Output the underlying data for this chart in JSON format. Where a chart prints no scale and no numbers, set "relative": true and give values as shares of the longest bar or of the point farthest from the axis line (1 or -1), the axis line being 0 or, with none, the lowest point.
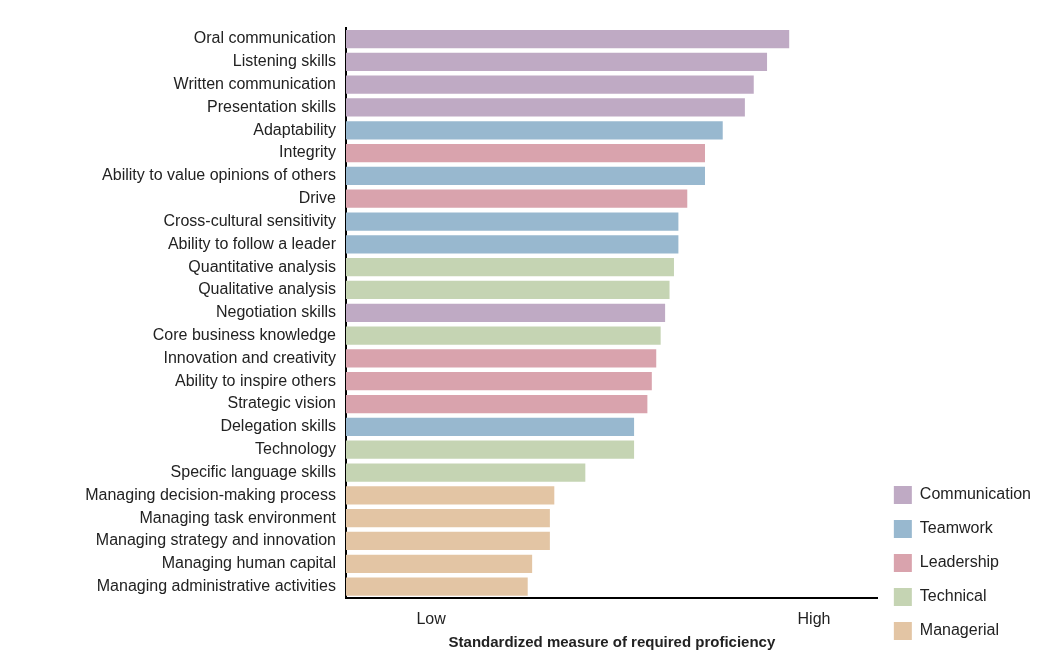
{
  "chart_data": {
    "type": "bar",
    "orientation": "horizontal",
    "stacked": true,
    "relative": true,
    "xlabel": "Standardized measure of required proficiency",
    "categories": [
      "Oral communication",
      "Listening skills",
      "Written communication",
      "Presentation skills",
      "Adaptability",
      "Integrity",
      "Ability to value opinions of others",
      "Drive",
      "Cross-cultural sensitivity",
      "Ability to follow a leader",
      "Quantitative analysis",
      "Qualitative analysis",
      "Negotiation skills",
      "Core business knowledge",
      "Innovation and creativity",
      "Ability to inspire others",
      "Strategic vision",
      "Delegation skills",
      "Technology",
      "Specific language skills",
      "Managing decision-making process",
      "Managing task environment",
      "Managing strategy and innovation",
      "Managing human capital",
      "Managing administrative activities"
    ],
    "annotations": [
      "Low",
      "High"
    ],
    "series": [
      {
        "name": "Communication",
        "color": "#bfaac4",
        "values": [
          1.0,
          0.95,
          0.92,
          0.9,
          null,
          null,
          null,
          null,
          null,
          null,
          null,
          null,
          0.72,
          null,
          null,
          null,
          null,
          null,
          null,
          null,
          null,
          null,
          null,
          null,
          null
        ]
      },
      {
        "name": "Teamwork",
        "color": "#98b8cf",
        "values": [
          null,
          null,
          null,
          null,
          0.85,
          null,
          0.81,
          null,
          0.75,
          0.75,
          null,
          null,
          null,
          null,
          null,
          null,
          null,
          0.65,
          null,
          null,
          null,
          null,
          null,
          null,
          null
        ]
      },
      {
        "name": "Leadership",
        "color": "#d9a3ad",
        "values": [
          null,
          null,
          null,
          null,
          null,
          0.81,
          null,
          0.77,
          null,
          null,
          null,
          null,
          null,
          null,
          0.7,
          0.69,
          0.68,
          null,
          null,
          null,
          null,
          null,
          null,
          null,
          null
        ]
      },
      {
        "name": "Technical",
        "color": "#c5d4b3",
        "values": [
          null,
          null,
          null,
          null,
          null,
          null,
          null,
          null,
          null,
          null,
          0.74,
          0.73,
          null,
          0.71,
          null,
          null,
          null,
          null,
          0.65,
          0.54,
          null,
          null,
          null,
          null,
          null
        ]
      },
      {
        "name": "Managerial",
        "color": "#e3c5a4",
        "values": [
          null,
          null,
          null,
          null,
          null,
          null,
          null,
          null,
          null,
          null,
          null,
          null,
          null,
          null,
          null,
          null,
          null,
          null,
          null,
          null,
          0.47,
          0.46,
          0.46,
          0.42,
          0.41
        ]
      }
    ],
    "grid": false,
    "legend": "bottom right"
  }
}
